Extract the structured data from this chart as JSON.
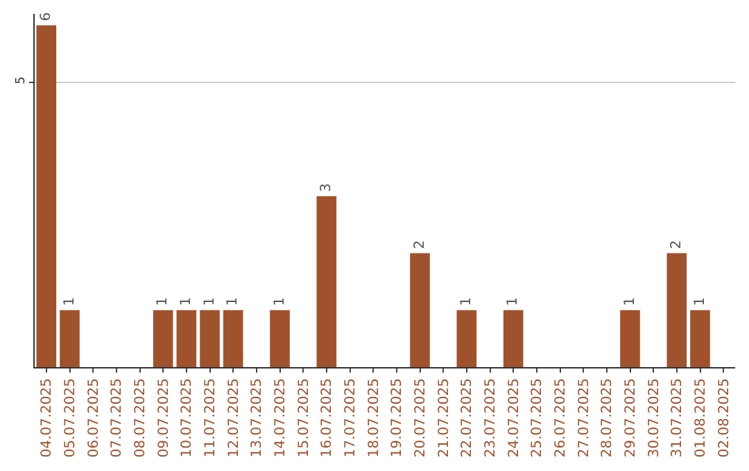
{
  "chart_data": {
    "type": "bar",
    "categories": [
      "04.07.2025",
      "05.07.2025",
      "06.07.2025",
      "07.07.2025",
      "08.07.2025",
      "09.07.2025",
      "10.07.2025",
      "11.07.2025",
      "12.07.2025",
      "13.07.2025",
      "14.07.2025",
      "15.07.2025",
      "16.07.2025",
      "17.07.2025",
      "18.07.2025",
      "19.07.2025",
      "20.07.2025",
      "21.07.2025",
      "22.07.2025",
      "23.07.2025",
      "24.07.2025",
      "25.07.2025",
      "26.07.2025",
      "27.07.2025",
      "28.07.2025",
      "29.07.2025",
      "30.07.2025",
      "31.07.2025",
      "01.08.2025",
      "02.08.2025"
    ],
    "values": [
      6,
      1,
      0,
      0,
      0,
      1,
      1,
      1,
      1,
      0,
      1,
      0,
      3,
      0,
      0,
      0,
      2,
      0,
      1,
      0,
      1,
      0,
      0,
      0,
      0,
      1,
      0,
      2,
      1,
      0
    ],
    "value_labels": [
      "6",
      "1",
      null,
      null,
      null,
      "1",
      "1",
      "1",
      "1",
      null,
      "1",
      null,
      "3",
      null,
      null,
      null,
      "2",
      null,
      "1",
      null,
      "1",
      null,
      null,
      null,
      null,
      "1",
      null,
      "2",
      "1",
      null
    ],
    "color": "#a0522d",
    "ylim": [
      0,
      6.2
    ],
    "yticks": [
      5
    ],
    "grid": "y",
    "legend": false
  }
}
